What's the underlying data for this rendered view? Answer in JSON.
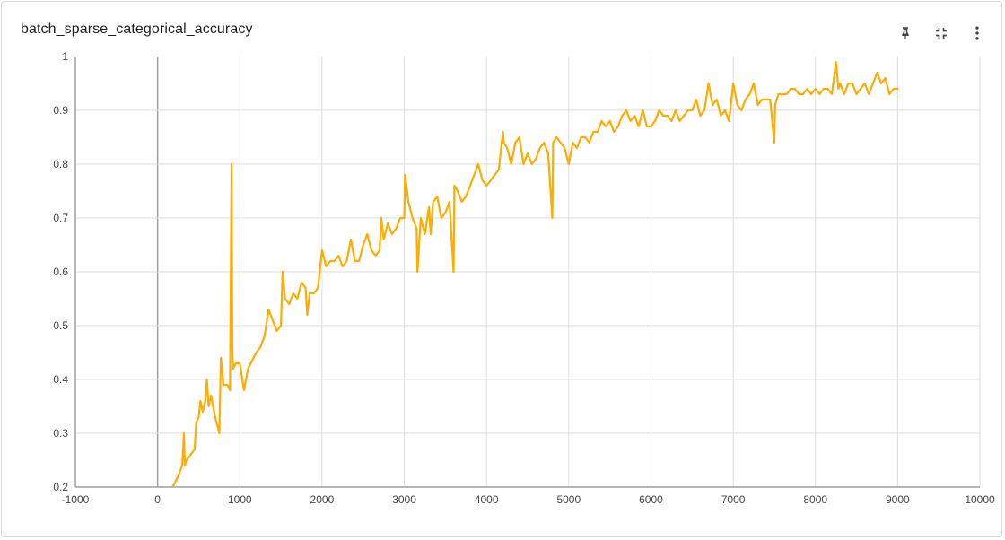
{
  "header": {
    "title": "batch_sparse_categorical_accuracy"
  },
  "toolbar": {
    "pin_icon": "pin-icon",
    "collapse_icon": "fullscreen-exit-icon",
    "more_icon": "more-vert-icon"
  },
  "chart_data": {
    "type": "line",
    "title": "",
    "xlabel": "",
    "ylabel": "",
    "xlim": [
      -1000,
      10000
    ],
    "ylim": [
      0.2,
      1.0
    ],
    "grid": true,
    "x_ticks": [
      "-1000",
      "0",
      "1000",
      "2000",
      "3000",
      "4000",
      "5000",
      "6000",
      "7000",
      "8000",
      "9000",
      "10000"
    ],
    "y_ticks": [
      "0.2",
      "0.3",
      "0.4",
      "0.5",
      "0.6",
      "0.7",
      "0.8",
      "0.9",
      "1"
    ],
    "color": "#ffab00",
    "series": [
      {
        "x": [
          0,
          100,
          180,
          200,
          250,
          300,
          320,
          330,
          350,
          400,
          450,
          470,
          500,
          520,
          550,
          580,
          600,
          620,
          650,
          700,
          750,
          770,
          790,
          800,
          850,
          880,
          900,
          905,
          910,
          920,
          950,
          1000,
          1050,
          1100,
          1200,
          1250,
          1300,
          1350,
          1400,
          1450,
          1500,
          1520,
          1550,
          1600,
          1650,
          1700,
          1750,
          1800,
          1820,
          1850,
          1900,
          1950,
          2000,
          2050,
          2100,
          2150,
          2200,
          2250,
          2300,
          2350,
          2400,
          2450,
          2500,
          2550,
          2600,
          2650,
          2700,
          2720,
          2750,
          2800,
          2850,
          2900,
          2950,
          3000,
          3010,
          3050,
          3100,
          3150,
          3160,
          3200,
          3250,
          3300,
          3320,
          3350,
          3400,
          3450,
          3500,
          3550,
          3600,
          3610,
          3650,
          3700,
          3750,
          3800,
          3850,
          3900,
          3950,
          4000,
          4050,
          4100,
          4150,
          4200,
          4210,
          4250,
          4300,
          4350,
          4400,
          4450,
          4500,
          4550,
          4600,
          4650,
          4700,
          4750,
          4800,
          4810,
          4850,
          4900,
          4950,
          5000,
          5050,
          5100,
          5150,
          5200,
          5250,
          5300,
          5350,
          5400,
          5450,
          5500,
          5550,
          5600,
          5650,
          5700,
          5750,
          5800,
          5850,
          5900,
          5950,
          6000,
          6050,
          6100,
          6150,
          6200,
          6250,
          6300,
          6350,
          6400,
          6450,
          6500,
          6550,
          6600,
          6650,
          6700,
          6750,
          6800,
          6850,
          6900,
          6950,
          7000,
          7050,
          7100,
          7150,
          7200,
          7250,
          7300,
          7350,
          7400,
          7450,
          7500,
          7510,
          7550,
          7600,
          7650,
          7700,
          7750,
          7800,
          7850,
          7900,
          7950,
          8000,
          8050,
          8100,
          8150,
          8200,
          8250,
          8280,
          8300,
          8350,
          8400,
          8450,
          8500,
          8550,
          8600,
          8650,
          8700,
          8750,
          8800,
          8850,
          8900,
          8950,
          9000
        ],
        "y": [
          null,
          null,
          0.2,
          0.205,
          0.22,
          0.24,
          0.3,
          0.24,
          0.25,
          0.26,
          0.27,
          0.32,
          0.33,
          0.36,
          0.34,
          0.36,
          0.4,
          0.35,
          0.37,
          0.33,
          0.3,
          0.44,
          0.41,
          0.39,
          0.39,
          0.38,
          0.8,
          0.55,
          0.45,
          0.42,
          0.43,
          0.43,
          0.38,
          0.42,
          0.45,
          0.46,
          0.48,
          0.53,
          0.51,
          0.49,
          0.5,
          0.6,
          0.55,
          0.54,
          0.56,
          0.55,
          0.58,
          0.57,
          0.52,
          0.56,
          0.56,
          0.57,
          0.64,
          0.61,
          0.62,
          0.62,
          0.63,
          0.61,
          0.62,
          0.66,
          0.62,
          0.62,
          0.65,
          0.67,
          0.64,
          0.63,
          0.64,
          0.7,
          0.66,
          0.69,
          0.67,
          0.68,
          0.7,
          0.7,
          0.78,
          0.73,
          0.7,
          0.68,
          0.6,
          0.7,
          0.67,
          0.72,
          0.67,
          0.73,
          0.74,
          0.7,
          0.71,
          0.73,
          0.6,
          0.76,
          0.75,
          0.73,
          0.74,
          0.76,
          0.78,
          0.8,
          0.77,
          0.76,
          0.77,
          0.78,
          0.79,
          0.86,
          0.84,
          0.83,
          0.8,
          0.84,
          0.85,
          0.8,
          0.82,
          0.8,
          0.81,
          0.83,
          0.84,
          0.82,
          0.7,
          0.84,
          0.85,
          0.84,
          0.83,
          0.8,
          0.84,
          0.83,
          0.85,
          0.85,
          0.84,
          0.86,
          0.86,
          0.88,
          0.87,
          0.88,
          0.86,
          0.87,
          0.89,
          0.9,
          0.88,
          0.89,
          0.87,
          0.9,
          0.87,
          0.87,
          0.88,
          0.9,
          0.89,
          0.89,
          0.88,
          0.9,
          0.88,
          0.89,
          0.9,
          0.9,
          0.92,
          0.89,
          0.9,
          0.95,
          0.91,
          0.92,
          0.89,
          0.9,
          0.88,
          0.95,
          0.91,
          0.9,
          0.92,
          0.93,
          0.95,
          0.91,
          0.92,
          0.92,
          0.92,
          0.84,
          0.91,
          0.93,
          0.93,
          0.93,
          0.94,
          0.94,
          0.93,
          0.93,
          0.94,
          0.93,
          0.94,
          0.93,
          0.94,
          0.94,
          0.93,
          0.99,
          0.94,
          0.95,
          0.93,
          0.95,
          0.95,
          0.93,
          0.94,
          0.95,
          0.93,
          0.95,
          0.97,
          0.95,
          0.96,
          0.93,
          0.94,
          0.94
        ]
      }
    ]
  }
}
